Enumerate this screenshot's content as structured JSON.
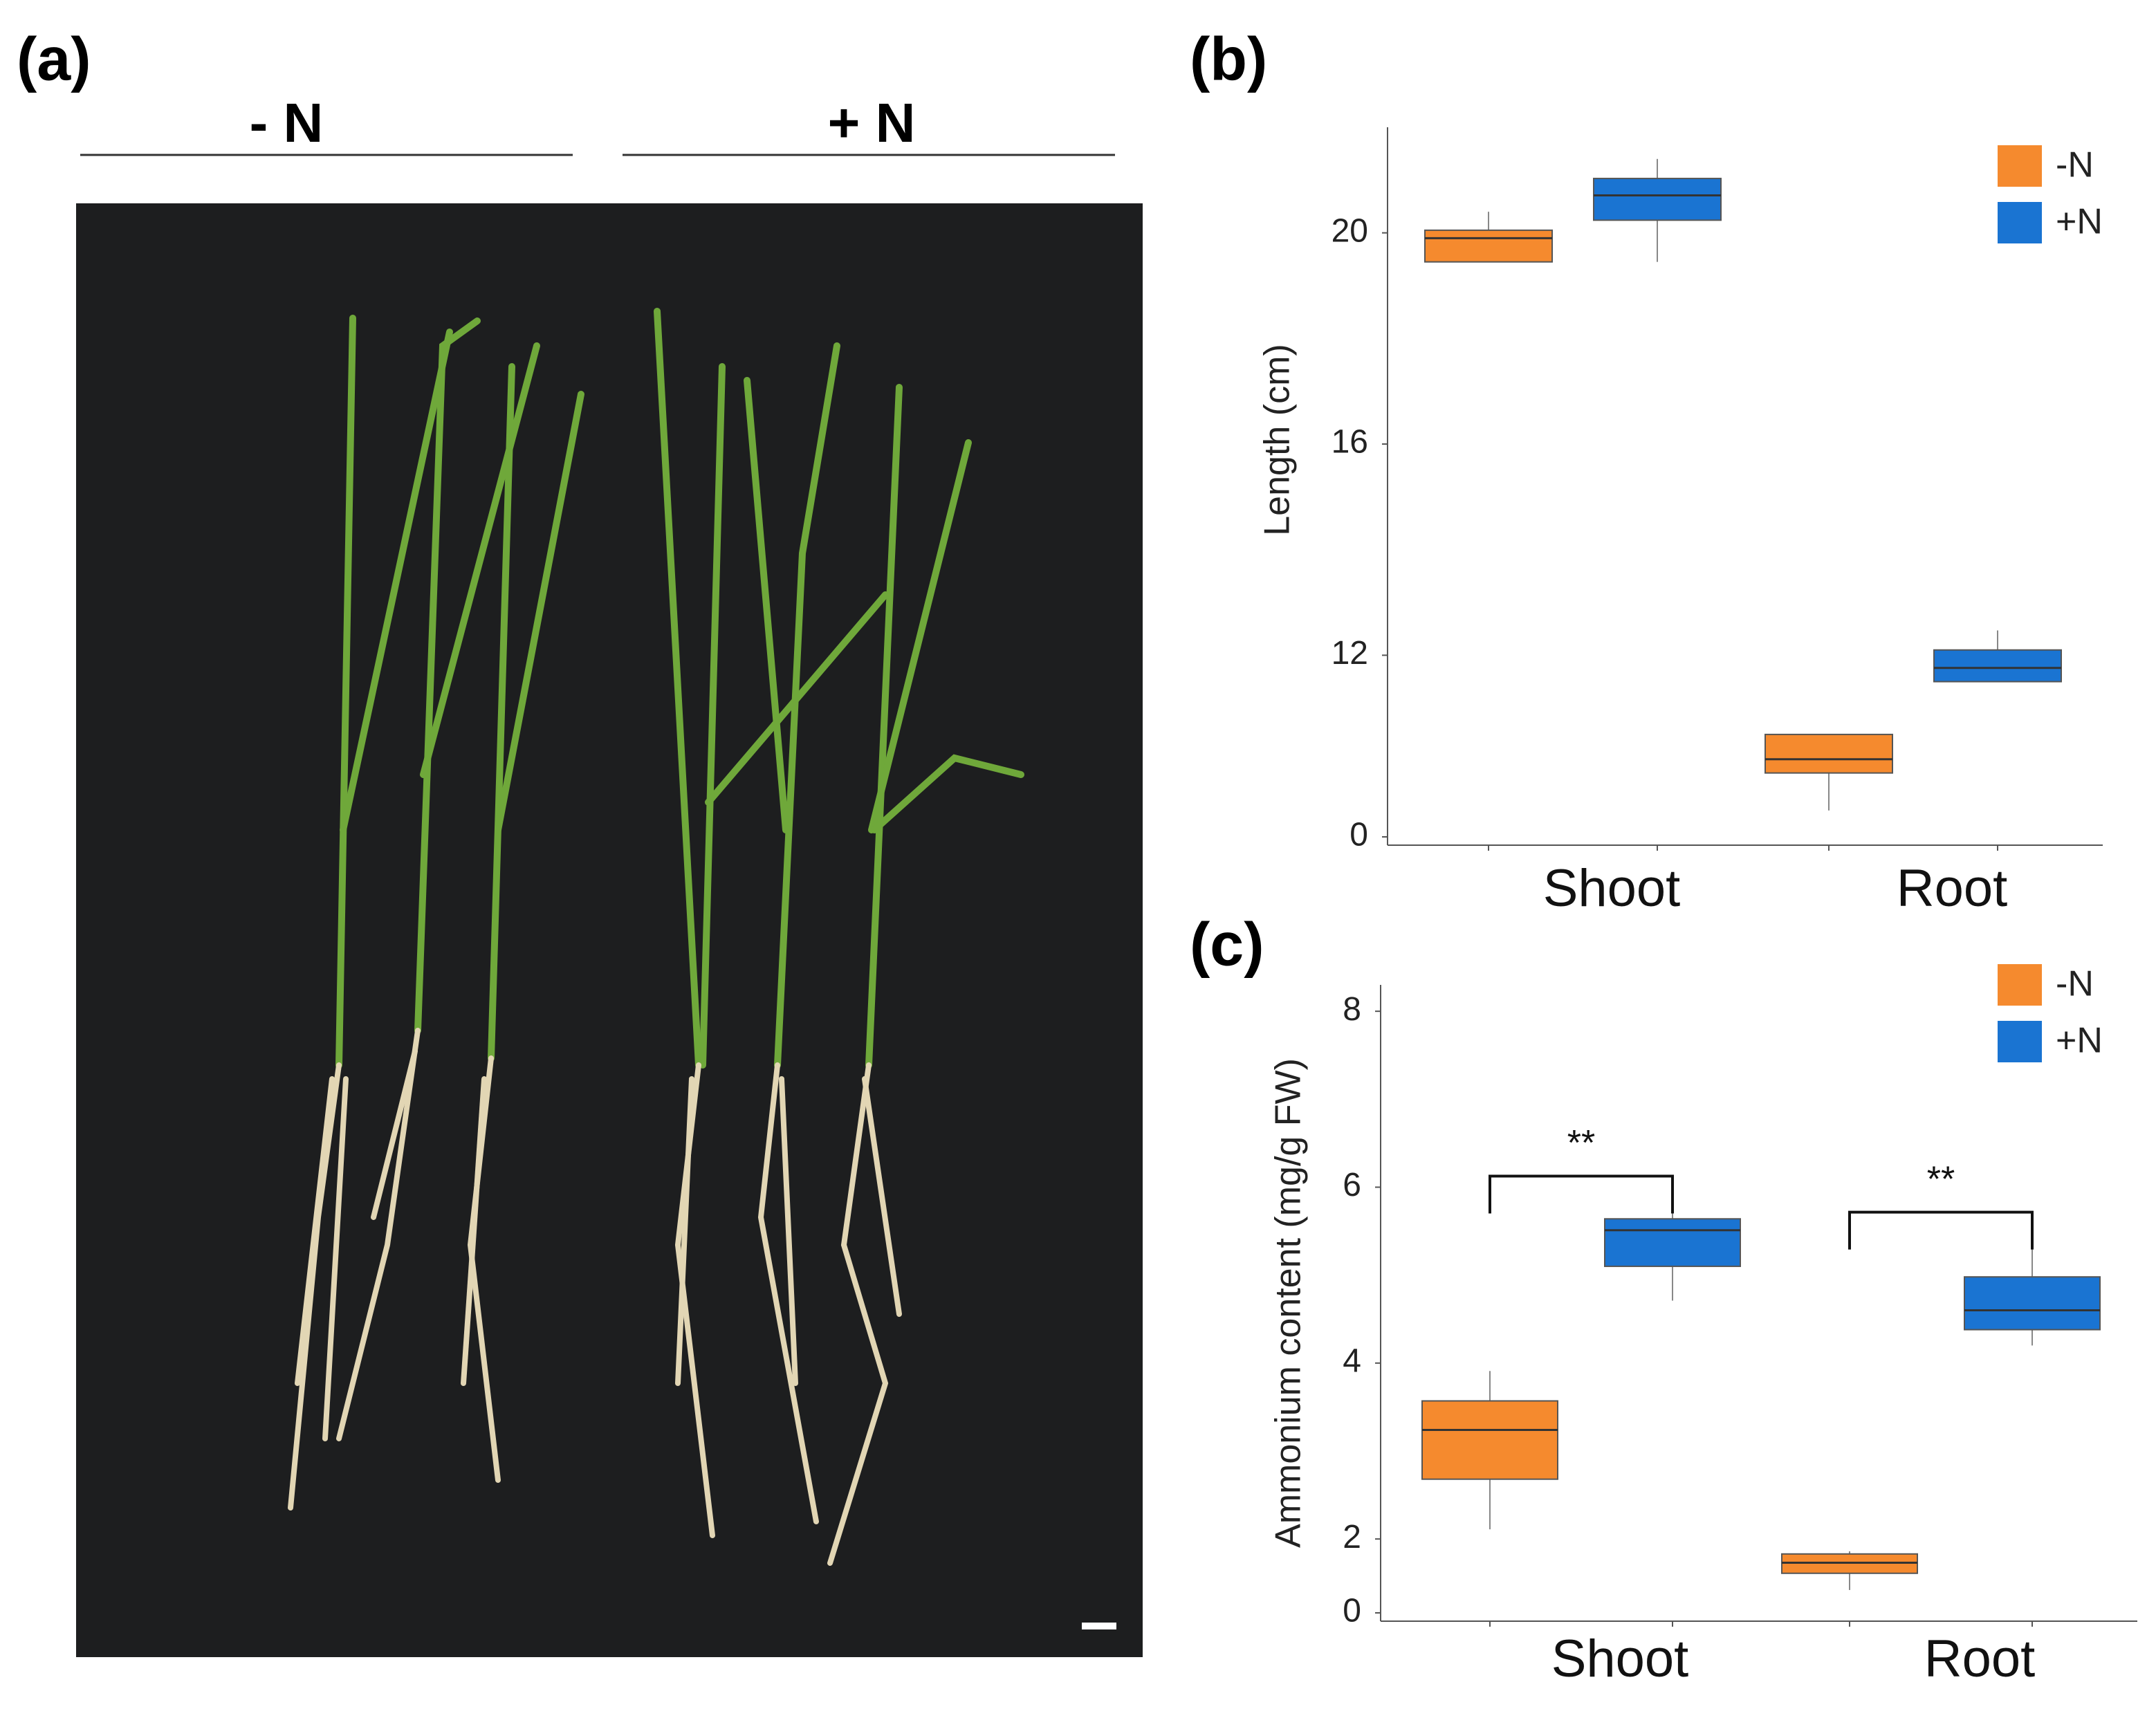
{
  "panels": {
    "a": "(a)",
    "b": "(b)",
    "c": "(c)"
  },
  "photo": {
    "labels": [
      "- N",
      "+ N"
    ]
  },
  "chart_data": [
    {
      "type": "box",
      "ylabel": "Length (cm)",
      "categories": [
        "Shoot",
        "Root"
      ],
      "series": [
        {
          "name": "-N",
          "color": "#f58a2e",
          "values": [
            {
              "min": 19.45,
              "q1": 19.45,
              "median": 19.9,
              "q3": 20.05,
              "max": 20.4
            },
            {
              "min": 9.06,
              "q1": 9.77,
              "median": 10.03,
              "q3": 10.5,
              "max": 10.5
            }
          ]
        },
        {
          "name": "+N",
          "color": "#1a74d2",
          "values": [
            {
              "min": 19.45,
              "q1": 20.24,
              "median": 20.71,
              "q3": 21.03,
              "max": 21.4
            },
            {
              "min": 11.5,
              "q1": 11.5,
              "median": 11.76,
              "q3": 12.1,
              "max": 12.47
            }
          ]
        }
      ],
      "ylim": [
        0,
        22
      ],
      "yticks": [
        0,
        12,
        16,
        20
      ],
      "axis_break": true,
      "legend": "upper right"
    },
    {
      "type": "box",
      "ylabel": "Ammonium content (mg/g FW)",
      "categories": [
        "Shoot",
        "Root"
      ],
      "series": [
        {
          "name": "-N",
          "color": "#f58a2e",
          "values": [
            {
              "min": 2.11,
              "q1": 2.68,
              "median": 3.24,
              "q3": 3.57,
              "max": 3.91
            },
            {
              "min": 1.42,
              "q1": 1.61,
              "median": 1.73,
              "q3": 1.83,
              "max": 1.86
            }
          ]
        },
        {
          "name": "+N",
          "color": "#1a74d2",
          "values": [
            {
              "min": 4.71,
              "q1": 5.1,
              "median": 5.51,
              "q3": 5.64,
              "max": 5.78
            },
            {
              "min": 4.2,
              "q1": 4.38,
              "median": 4.6,
              "q3": 4.98,
              "max": 5.37
            }
          ]
        }
      ],
      "ylim": [
        0,
        8.3
      ],
      "yticks": [
        0,
        2,
        4,
        6,
        8
      ],
      "axis_break": true,
      "legend": "upper right",
      "significance": [
        "**",
        "**"
      ]
    }
  ]
}
